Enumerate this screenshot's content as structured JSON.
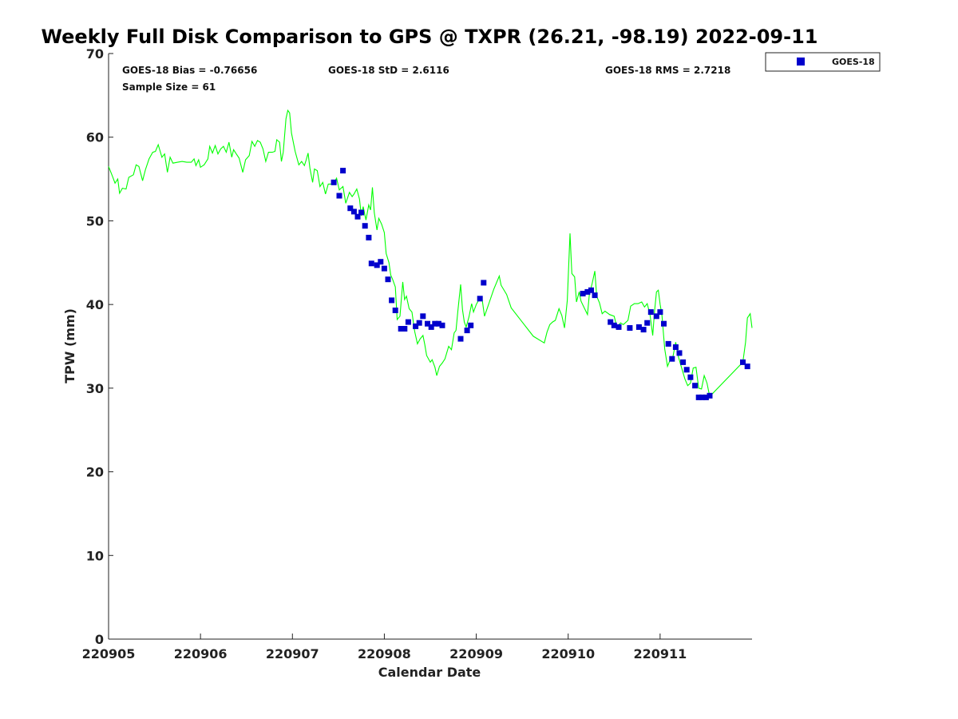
{
  "chart_data": {
    "type": "scatter",
    "title": "Weekly Full Disk Comparison to GPS @ TXPR (26.21, -98.19) 2022-09-11",
    "xlabel": "Calendar Date",
    "ylabel": "TPW (mm)",
    "xlim": [
      0,
      7
    ],
    "ylim": [
      0,
      70
    ],
    "x_tick_values": [
      0,
      1,
      2,
      3,
      4,
      5,
      6
    ],
    "x_tick_labels": [
      "220905",
      "220906",
      "220907",
      "220908",
      "220909",
      "220910",
      "220911"
    ],
    "y_ticks": [
      0,
      10,
      20,
      30,
      40,
      50,
      60,
      70
    ],
    "stats": {
      "bias": "GOES-18 Bias = -0.76656",
      "sample_size": "Sample Size = 61",
      "std": "GOES-18 StD = 2.6116",
      "rms": "GOES-18 RMS = 2.7218"
    },
    "legend": {
      "position": "top-right",
      "entries": [
        "GOES-18"
      ]
    },
    "colors": {
      "line": "#00ff00",
      "marker": "#0000cc"
    },
    "series": [
      {
        "name": "",
        "kind": "line",
        "points": [
          [
            0.0,
            56.5
          ],
          [
            0.04,
            55.4
          ],
          [
            0.07,
            54.5
          ],
          [
            0.1,
            55.0
          ],
          [
            0.12,
            53.3
          ],
          [
            0.15,
            53.9
          ],
          [
            0.19,
            53.8
          ],
          [
            0.22,
            55.2
          ],
          [
            0.27,
            55.5
          ],
          [
            0.3,
            56.7
          ],
          [
            0.33,
            56.5
          ],
          [
            0.37,
            54.8
          ],
          [
            0.4,
            56.1
          ],
          [
            0.44,
            57.4
          ],
          [
            0.48,
            58.2
          ],
          [
            0.51,
            58.3
          ],
          [
            0.54,
            59.1
          ],
          [
            0.58,
            57.6
          ],
          [
            0.61,
            58.0
          ],
          [
            0.64,
            55.8
          ],
          [
            0.67,
            57.6
          ],
          [
            0.7,
            56.9
          ],
          [
            0.75,
            57.0
          ],
          [
            0.8,
            57.1
          ],
          [
            0.85,
            57.0
          ],
          [
            0.9,
            57.0
          ],
          [
            0.93,
            57.4
          ],
          [
            0.95,
            56.6
          ],
          [
            0.98,
            57.3
          ],
          [
            1.0,
            56.4
          ],
          [
            1.04,
            56.7
          ],
          [
            1.08,
            57.4
          ],
          [
            1.1,
            58.9
          ],
          [
            1.13,
            58.1
          ],
          [
            1.16,
            59.0
          ],
          [
            1.19,
            58.0
          ],
          [
            1.22,
            58.6
          ],
          [
            1.25,
            58.9
          ],
          [
            1.28,
            58.2
          ],
          [
            1.31,
            59.4
          ],
          [
            1.34,
            57.6
          ],
          [
            1.36,
            58.5
          ],
          [
            1.39,
            58.0
          ],
          [
            1.42,
            57.5
          ],
          [
            1.46,
            55.8
          ],
          [
            1.49,
            57.3
          ],
          [
            1.53,
            57.8
          ],
          [
            1.56,
            59.5
          ],
          [
            1.59,
            58.9
          ],
          [
            1.62,
            59.6
          ],
          [
            1.65,
            59.4
          ],
          [
            1.68,
            58.6
          ],
          [
            1.71,
            57.1
          ],
          [
            1.74,
            58.2
          ],
          [
            1.78,
            58.2
          ],
          [
            1.81,
            58.3
          ],
          [
            1.83,
            59.7
          ],
          [
            1.86,
            59.4
          ],
          [
            1.88,
            57.1
          ],
          [
            1.9,
            58.2
          ],
          [
            1.93,
            62.2
          ],
          [
            1.95,
            63.2
          ],
          [
            1.97,
            62.9
          ],
          [
            1.99,
            60.5
          ],
          [
            2.03,
            58.3
          ],
          [
            2.07,
            56.7
          ],
          [
            2.1,
            57.1
          ],
          [
            2.13,
            56.6
          ],
          [
            2.15,
            57.3
          ],
          [
            2.17,
            58.1
          ],
          [
            2.19,
            56.3
          ],
          [
            2.22,
            54.6
          ],
          [
            2.24,
            56.2
          ],
          [
            2.27,
            56.0
          ],
          [
            2.3,
            54.1
          ],
          [
            2.33,
            54.6
          ],
          [
            2.36,
            53.2
          ],
          [
            2.39,
            54.4
          ],
          [
            2.42,
            54.4
          ],
          [
            2.45,
            54.5
          ],
          [
            2.48,
            55.1
          ],
          [
            2.51,
            53.7
          ],
          [
            2.55,
            54.1
          ],
          [
            2.58,
            52.1
          ],
          [
            2.62,
            53.4
          ],
          [
            2.65,
            52.9
          ],
          [
            2.67,
            53.2
          ],
          [
            2.7,
            53.8
          ],
          [
            2.73,
            52.6
          ],
          [
            2.75,
            50.6
          ],
          [
            2.77,
            51.7
          ],
          [
            2.8,
            50.1
          ],
          [
            2.83,
            51.9
          ],
          [
            2.85,
            51.3
          ],
          [
            2.87,
            54.0
          ],
          [
            2.89,
            51.0
          ],
          [
            2.92,
            48.9
          ],
          [
            2.94,
            50.3
          ],
          [
            2.97,
            49.6
          ],
          [
            3.0,
            48.6
          ],
          [
            3.02,
            46.1
          ],
          [
            3.05,
            45.0
          ],
          [
            3.07,
            43.5
          ],
          [
            3.09,
            43.0
          ],
          [
            3.12,
            42.1
          ],
          [
            3.14,
            38.2
          ],
          [
            3.17,
            38.6
          ],
          [
            3.2,
            42.7
          ],
          [
            3.22,
            40.6
          ],
          [
            3.24,
            41.0
          ],
          [
            3.27,
            39.5
          ],
          [
            3.3,
            39.1
          ],
          [
            3.33,
            36.8
          ],
          [
            3.36,
            35.3
          ],
          [
            3.39,
            35.9
          ],
          [
            3.42,
            36.3
          ],
          [
            3.44,
            35.2
          ],
          [
            3.46,
            33.9
          ],
          [
            3.5,
            33.1
          ],
          [
            3.52,
            33.4
          ],
          [
            3.55,
            32.5
          ],
          [
            3.57,
            31.5
          ],
          [
            3.6,
            32.6
          ],
          [
            3.63,
            33.0
          ],
          [
            3.66,
            33.5
          ],
          [
            3.7,
            35.0
          ],
          [
            3.73,
            34.6
          ],
          [
            3.76,
            36.6
          ],
          [
            3.78,
            36.9
          ],
          [
            3.8,
            39.2
          ],
          [
            3.83,
            42.4
          ],
          [
            3.85,
            39.4
          ],
          [
            3.87,
            37.9
          ],
          [
            3.89,
            37.3
          ],
          [
            3.92,
            38.5
          ],
          [
            3.95,
            40.1
          ],
          [
            3.97,
            39.1
          ],
          [
            4.0,
            40.0
          ],
          [
            4.03,
            40.6
          ],
          [
            4.06,
            40.9
          ],
          [
            4.09,
            38.6
          ],
          [
            4.14,
            40.2
          ],
          [
            4.19,
            41.8
          ],
          [
            4.25,
            43.4
          ],
          [
            4.27,
            42.3
          ],
          [
            4.33,
            41.2
          ],
          [
            4.38,
            39.6
          ],
          [
            4.5,
            37.9
          ],
          [
            4.62,
            36.2
          ],
          [
            4.74,
            35.4
          ],
          [
            4.77,
            36.7
          ],
          [
            4.8,
            37.6
          ],
          [
            4.83,
            37.9
          ],
          [
            4.86,
            38.1
          ],
          [
            4.9,
            39.5
          ],
          [
            4.93,
            38.7
          ],
          [
            4.96,
            37.2
          ],
          [
            4.99,
            40.5
          ],
          [
            5.02,
            48.5
          ],
          [
            5.04,
            43.7
          ],
          [
            5.07,
            43.3
          ],
          [
            5.09,
            40.3
          ],
          [
            5.12,
            41.5
          ],
          [
            5.14,
            40.4
          ],
          [
            5.17,
            39.7
          ],
          [
            5.21,
            38.8
          ],
          [
            5.23,
            41.2
          ],
          [
            5.26,
            42.5
          ],
          [
            5.29,
            44.0
          ],
          [
            5.31,
            41.0
          ],
          [
            5.34,
            40.2
          ],
          [
            5.37,
            38.9
          ],
          [
            5.4,
            39.2
          ],
          [
            5.45,
            38.8
          ],
          [
            5.5,
            38.6
          ],
          [
            5.53,
            37.3
          ],
          [
            5.57,
            37.8
          ],
          [
            5.6,
            37.6
          ],
          [
            5.65,
            38.1
          ],
          [
            5.68,
            39.8
          ],
          [
            5.72,
            40.1
          ],
          [
            5.76,
            40.1
          ],
          [
            5.8,
            40.3
          ],
          [
            5.83,
            39.7
          ],
          [
            5.86,
            40.1
          ],
          [
            5.89,
            38.8
          ],
          [
            5.92,
            36.3
          ],
          [
            5.94,
            39.2
          ],
          [
            5.96,
            41.5
          ],
          [
            5.98,
            41.7
          ],
          [
            6.0,
            40.0
          ],
          [
            6.02,
            38.7
          ],
          [
            6.05,
            34.7
          ],
          [
            6.08,
            32.6
          ],
          [
            6.11,
            33.4
          ],
          [
            6.14,
            33.8
          ],
          [
            6.17,
            35.5
          ],
          [
            6.2,
            33.7
          ],
          [
            6.24,
            32.2
          ],
          [
            6.27,
            31.1
          ],
          [
            6.3,
            30.3
          ],
          [
            6.33,
            30.6
          ],
          [
            6.36,
            32.4
          ],
          [
            6.39,
            32.5
          ],
          [
            6.42,
            30.0
          ],
          [
            6.45,
            29.9
          ],
          [
            6.48,
            31.5
          ],
          [
            6.51,
            30.6
          ],
          [
            6.54,
            29.0
          ],
          [
            6.9,
            33.1
          ],
          [
            6.93,
            35.5
          ],
          [
            6.95,
            38.4
          ],
          [
            6.98,
            38.9
          ],
          [
            7.0,
            37.2
          ]
        ]
      },
      {
        "name": "GOES-18",
        "kind": "scatter",
        "points": [
          [
            2.45,
            54.6
          ],
          [
            2.51,
            53.0
          ],
          [
            2.55,
            56.0
          ],
          [
            2.63,
            51.5
          ],
          [
            2.67,
            51.1
          ],
          [
            2.71,
            50.5
          ],
          [
            2.75,
            51.0
          ],
          [
            2.79,
            49.4
          ],
          [
            2.83,
            48.0
          ],
          [
            2.86,
            44.9
          ],
          [
            2.92,
            44.7
          ],
          [
            2.96,
            45.1
          ],
          [
            3.0,
            44.3
          ],
          [
            3.04,
            43.0
          ],
          [
            3.08,
            40.5
          ],
          [
            3.12,
            39.3
          ],
          [
            3.18,
            37.1
          ],
          [
            3.22,
            37.1
          ],
          [
            3.26,
            37.9
          ],
          [
            3.34,
            37.4
          ],
          [
            3.38,
            37.8
          ],
          [
            3.42,
            38.6
          ],
          [
            3.47,
            37.7
          ],
          [
            3.51,
            37.3
          ],
          [
            3.55,
            37.7
          ],
          [
            3.59,
            37.7
          ],
          [
            3.63,
            37.5
          ],
          [
            3.83,
            35.9
          ],
          [
            3.9,
            36.9
          ],
          [
            3.94,
            37.5
          ],
          [
            4.04,
            40.7
          ],
          [
            4.08,
            42.6
          ],
          [
            5.16,
            41.3
          ],
          [
            5.21,
            41.5
          ],
          [
            5.25,
            41.7
          ],
          [
            5.29,
            41.1
          ],
          [
            5.46,
            37.9
          ],
          [
            5.5,
            37.5
          ],
          [
            5.55,
            37.3
          ],
          [
            5.67,
            37.2
          ],
          [
            5.77,
            37.3
          ],
          [
            5.82,
            37.0
          ],
          [
            5.86,
            37.8
          ],
          [
            5.9,
            39.1
          ],
          [
            5.96,
            38.6
          ],
          [
            6.0,
            39.1
          ],
          [
            6.04,
            37.7
          ],
          [
            6.09,
            35.3
          ],
          [
            6.13,
            33.5
          ],
          [
            6.17,
            34.9
          ],
          [
            6.21,
            34.2
          ],
          [
            6.25,
            33.1
          ],
          [
            6.29,
            32.2
          ],
          [
            6.33,
            31.3
          ],
          [
            6.38,
            30.3
          ],
          [
            6.42,
            28.9
          ],
          [
            6.46,
            28.9
          ],
          [
            6.5,
            28.9
          ],
          [
            6.54,
            29.1
          ],
          [
            6.9,
            33.1
          ],
          [
            6.95,
            32.6
          ]
        ]
      }
    ]
  }
}
